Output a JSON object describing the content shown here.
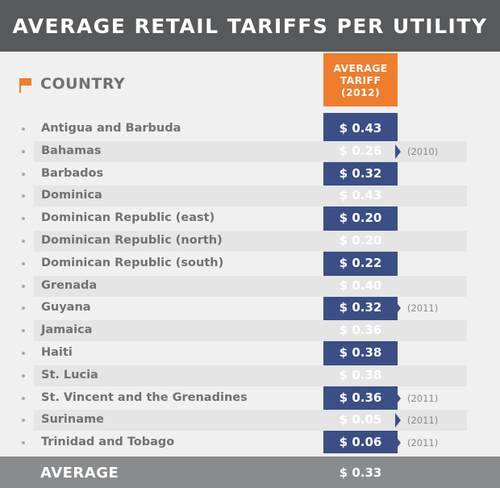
{
  "title": "AVERAGE RETAIL TARIFFS PER UTILITY",
  "header": {
    "country_label": "COUNTRY",
    "tariff_line1": "AVERAGE",
    "tariff_line2": "TARIFF",
    "tariff_line3": "(2012)"
  },
  "colors": {
    "title_bg": "#58595b",
    "orange": "#ef7d2d",
    "blue": "#3b4f86",
    "footer_bg": "#8a8b8d",
    "page_bg": "#f0f0f0"
  },
  "rows": [
    {
      "country": "Antigua and Barbuda",
      "tariff": "$ 0.43",
      "note": ""
    },
    {
      "country": "Bahamas",
      "tariff": "$ 0.26",
      "note": "(2010)"
    },
    {
      "country": "Barbados",
      "tariff": "$ 0.32",
      "note": ""
    },
    {
      "country": "Dominica",
      "tariff": "$ 0.43",
      "note": ""
    },
    {
      "country": "Dominican Republic (east)",
      "tariff": "$ 0.20",
      "note": ""
    },
    {
      "country": "Dominican Republic (north)",
      "tariff": "$ 0.20",
      "note": ""
    },
    {
      "country": "Dominican Republic (south)",
      "tariff": "$ 0.22",
      "note": ""
    },
    {
      "country": "Grenada",
      "tariff": "$ 0.40",
      "note": ""
    },
    {
      "country": "Guyana",
      "tariff": "$ 0.32",
      "note": "(2011)"
    },
    {
      "country": "Jamaica",
      "tariff": "$ 0.36",
      "note": ""
    },
    {
      "country": "Haiti",
      "tariff": "$ 0.38",
      "note": ""
    },
    {
      "country": "St. Lucia",
      "tariff": "$ 0.38",
      "note": ""
    },
    {
      "country": "St. Vincent and the Grenadines",
      "tariff": "$ 0.36",
      "note": "(2011)"
    },
    {
      "country": "Suriname",
      "tariff": "$ 0.05",
      "note": "(2011)"
    },
    {
      "country": "Trinidad and Tobago",
      "tariff": "$ 0.06",
      "note": "(2011)"
    }
  ],
  "footer": {
    "label": "AVERAGE",
    "value": "$ 0.33"
  }
}
